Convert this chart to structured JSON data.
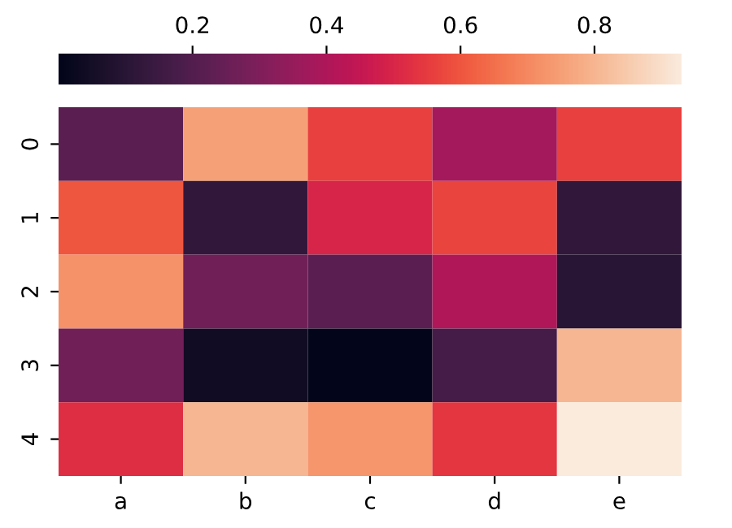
{
  "chart_data": {
    "type": "heatmap",
    "categories": [
      "a",
      "b",
      "c",
      "d",
      "e"
    ],
    "y_categories": [
      "0",
      "1",
      "2",
      "3",
      "4"
    ],
    "cells": [
      [
        0.22,
        0.75,
        0.56,
        0.38,
        0.56
      ],
      [
        0.6,
        0.12,
        0.5,
        0.57,
        0.12
      ],
      [
        0.72,
        0.27,
        0.22,
        0.4,
        0.1
      ],
      [
        0.27,
        0.04,
        0.0,
        0.17,
        0.8
      ],
      [
        0.52,
        0.8,
        0.73,
        0.54,
        0.93
      ]
    ],
    "clim": [
      0.0,
      0.93
    ],
    "cticks": [
      0.2,
      0.4,
      0.6,
      0.8
    ]
  }
}
